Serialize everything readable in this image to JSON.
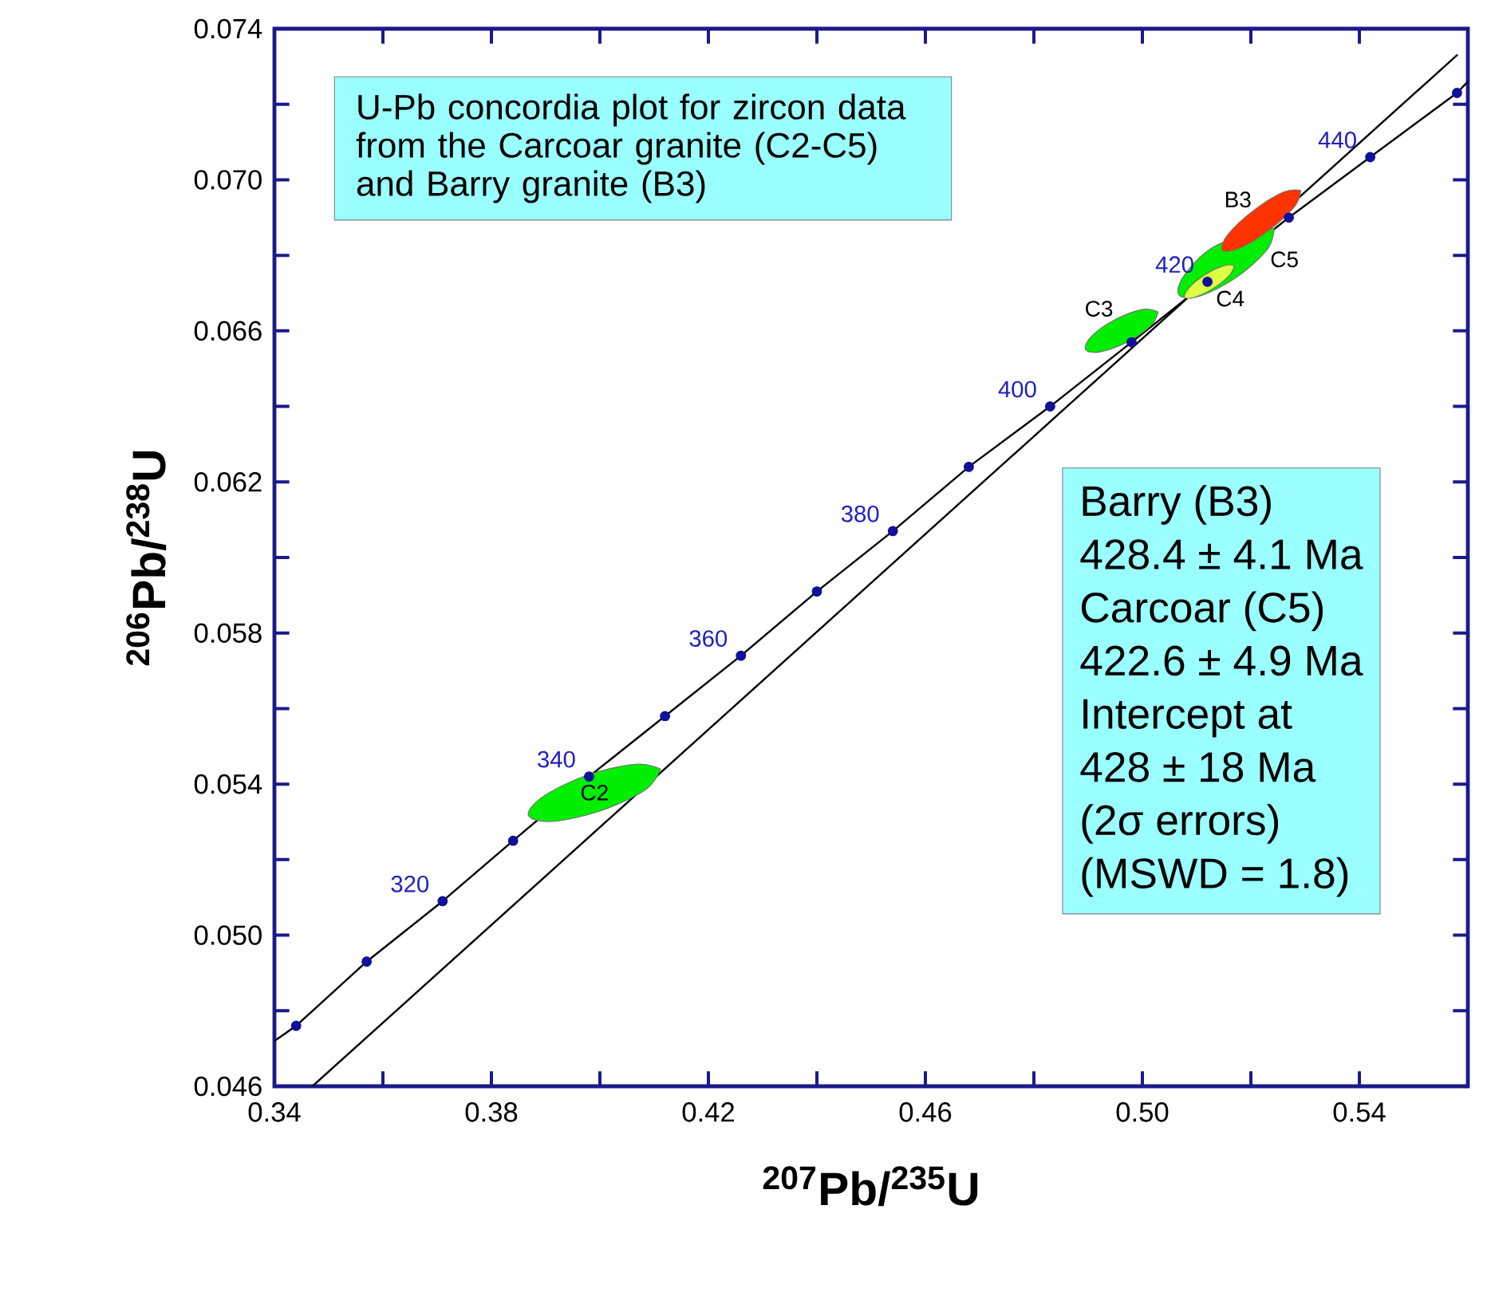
{
  "chart_data": {
    "type": "line",
    "title": "U-Pb concordia plot for zircon data from the Carcoar granite (C2-C5) and Barry granite (B3)",
    "xlabel": "$^{207}$Pb/$^{235}$U",
    "ylabel": "$^{206}$Pb/$^{238}$U",
    "xlim": [
      0.34,
      0.56
    ],
    "ylim": [
      0.046,
      0.074
    ],
    "xticks": [
      0.34,
      {
        "value": 0.36,
        "label": null
      },
      0.38,
      {
        "value": 0.4,
        "label": null
      },
      0.42,
      {
        "value": 0.44,
        "label": null
      },
      0.46,
      {
        "value": 0.48,
        "label": null
      },
      {
        "value": 0.5,
        "label": "0.50"
      },
      {
        "value": 0.52,
        "label": null
      },
      0.54
    ],
    "yticks": [
      0.046,
      {
        "value": 0.048,
        "label": null
      },
      {
        "value": 0.05,
        "label": "0.050"
      },
      {
        "value": 0.052,
        "label": null
      },
      0.054,
      {
        "value": 0.056,
        "label": null
      },
      0.058,
      {
        "value": 0.06,
        "label": null
      },
      0.062,
      {
        "value": 0.064,
        "label": null
      },
      0.066,
      {
        "value": 0.068,
        "label": null
      },
      {
        "value": 0.07,
        "label": "0.070"
      },
      {
        "value": 0.072,
        "label": null
      },
      0.074
    ],
    "series": [
      {
        "color": "#000000",
        "marker": "none",
        "x": [
          0.34,
          0.344,
          0.357,
          0.371,
          0.384,
          0.398,
          0.412,
          0.426,
          0.44,
          0.454,
          0.468,
          0.483,
          0.498,
          0.512,
          0.527,
          0.542,
          0.558,
          0.56
        ],
        "values": [
          0.0472,
          0.0476,
          0.0493,
          0.0509,
          0.0525,
          0.0542,
          0.0558,
          0.0574,
          0.0591,
          0.0607,
          0.0624,
          0.064,
          0.0657,
          0.0673,
          0.069,
          0.0706,
          0.0723,
          0.0726
        ]
      },
      {
        "color": "#000000",
        "marker": "none",
        "x": [
          0.347,
          0.558
        ],
        "values": [
          0.046,
          0.0733
        ]
      },
      {
        "type": "area",
        "name": "C2",
        "color": "#00ee00",
        "x": [
          0.4112,
          0.4084,
          0.4001,
          0.3912,
          0.3868,
          0.3897,
          0.3979,
          0.4068
        ],
        "values": [
          0.0544,
          0.05385,
          0.05329,
          0.05301,
          0.05318,
          0.05369,
          0.05425,
          0.05453
        ]
      },
      {
        "type": "area",
        "name": "C3",
        "color": "#00ee00",
        "x": [
          0.5029,
          0.5016,
          0.4972,
          0.4921,
          0.4895,
          0.4907,
          0.4951,
          0.5002
        ],
        "values": [
          0.0665,
          0.06614,
          0.0657,
          0.06544,
          0.06551,
          0.06587,
          0.06631,
          0.06657
        ]
      },
      {
        "type": "area",
        "name": "C5",
        "color": "#00ee00",
        "x": [
          0.5243,
          0.5231,
          0.5174,
          0.5106,
          0.5067,
          0.5079,
          0.5136
        ],
        "values": [
          0.06872,
          0.06817,
          0.06742,
          0.06692,
          0.06696,
          0.06751,
          0.06826
        ]
      },
      {
        "type": "area",
        "name": "C4",
        "color": "#ddff44",
        "x": [
          0.5169,
          0.5161,
          0.5131,
          0.5096,
          0.5078,
          0.5086,
          0.5116,
          0.5151
        ],
        "values": [
          0.06773,
          0.06748,
          0.06713,
          0.06689,
          0.06689,
          0.06714,
          0.06749,
          0.06773
        ]
      },
      {
        "type": "area",
        "name": "B3",
        "color": "#ff3300",
        "x": [
          0.5292,
          0.5281,
          0.5233,
          0.5178,
          0.5147,
          0.5158,
          0.5206,
          0.5261
        ],
        "values": [
          0.06972,
          0.0693,
          0.06866,
          0.06818,
          0.06814,
          0.06856,
          0.0692,
          0.06968
        ]
      },
      {
        "type": "scatter",
        "color": "#10109a",
        "marker": "circle",
        "x": [
          0.344,
          0.357,
          0.371,
          0.384,
          0.398,
          0.412,
          0.426,
          0.44,
          0.454,
          0.468,
          0.483,
          0.498,
          0.512,
          0.527,
          0.542,
          0.558
        ],
        "values": [
          0.0476,
          0.0493,
          0.0509,
          0.0525,
          0.0542,
          0.0558,
          0.0574,
          0.0591,
          0.0607,
          0.0624,
          0.064,
          0.0657,
          0.0673,
          0.069,
          0.0706,
          0.0723
        ]
      }
    ],
    "annotations": [
      {
        "text": "320",
        "x": 0.371,
        "y": 0.0509
      },
      {
        "text": "340",
        "x": 0.398,
        "y": 0.0542
      },
      {
        "text": "360",
        "x": 0.426,
        "y": 0.0574
      },
      {
        "text": "380",
        "x": 0.454,
        "y": 0.0607
      },
      {
        "text": "400",
        "x": 0.483,
        "y": 0.064
      },
      {
        "text": "420",
        "x": 0.512,
        "y": 0.0673
      },
      {
        "text": "440",
        "x": 0.542,
        "y": 0.0706
      },
      "Barry (B3)",
      "428.4 ± 4.1 Ma",
      "Carcoar (C5)",
      "422.6 ± 4.9 Ma",
      "Intercept at",
      "428 ± 18 Ma",
      "(2σ errors)",
      "(MSWD = 1.8)"
    ]
  }
}
